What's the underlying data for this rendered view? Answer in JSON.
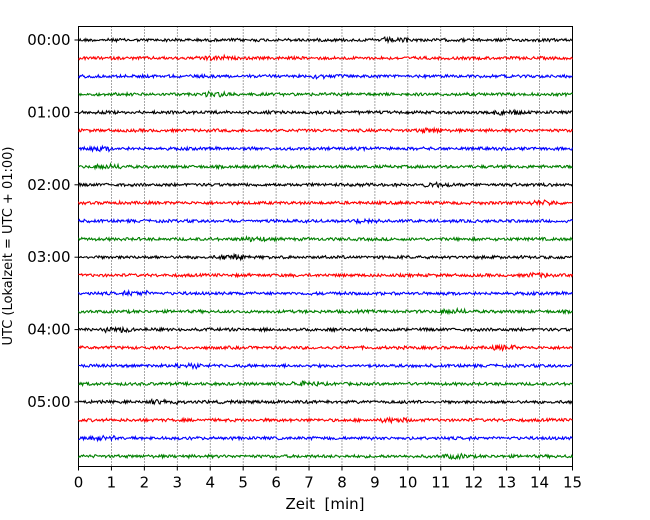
{
  "chart_data": {
    "type": "line",
    "title": "",
    "xlabel": "Zeit  [min]",
    "ylabel": "UTC (Lokalzeit = UTC + 01:00)",
    "xlim": [
      0,
      15
    ],
    "x_ticks": [
      0,
      1,
      2,
      3,
      4,
      5,
      6,
      7,
      8,
      9,
      10,
      11,
      12,
      13,
      14,
      15
    ],
    "x_tick_labels": [
      "0",
      "1",
      "2",
      "3",
      "4",
      "5",
      "6",
      "7",
      "8",
      "9",
      "10",
      "11",
      "12",
      "13",
      "14",
      "15"
    ],
    "grid": "vertical dotted",
    "y_ticks": [
      "00:00",
      "01:00",
      "02:00",
      "03:00",
      "04:00",
      "05:00"
    ],
    "trace_interval_minutes": 15,
    "trace_colors": [
      "#000000",
      "#ff0000",
      "#0000ff",
      "#008000"
    ],
    "traces": [
      {
        "start": "00:00",
        "color": "#000000"
      },
      {
        "start": "00:15",
        "color": "#ff0000"
      },
      {
        "start": "00:30",
        "color": "#0000ff"
      },
      {
        "start": "00:45",
        "color": "#008000"
      },
      {
        "start": "01:00",
        "color": "#000000"
      },
      {
        "start": "01:15",
        "color": "#ff0000"
      },
      {
        "start": "01:30",
        "color": "#0000ff"
      },
      {
        "start": "01:45",
        "color": "#008000"
      },
      {
        "start": "02:00",
        "color": "#000000"
      },
      {
        "start": "02:15",
        "color": "#ff0000"
      },
      {
        "start": "02:30",
        "color": "#0000ff"
      },
      {
        "start": "02:45",
        "color": "#008000"
      },
      {
        "start": "03:00",
        "color": "#000000"
      },
      {
        "start": "03:15",
        "color": "#ff0000"
      },
      {
        "start": "03:30",
        "color": "#0000ff"
      },
      {
        "start": "03:45",
        "color": "#008000"
      },
      {
        "start": "04:00",
        "color": "#000000"
      },
      {
        "start": "04:15",
        "color": "#ff0000"
      },
      {
        "start": "04:30",
        "color": "#0000ff"
      },
      {
        "start": "04:45",
        "color": "#008000"
      },
      {
        "start": "05:00",
        "color": "#000000"
      },
      {
        "start": "05:15",
        "color": "#ff0000"
      },
      {
        "start": "05:30",
        "color": "#0000ff"
      },
      {
        "start": "05:45",
        "color": "#008000"
      }
    ]
  }
}
